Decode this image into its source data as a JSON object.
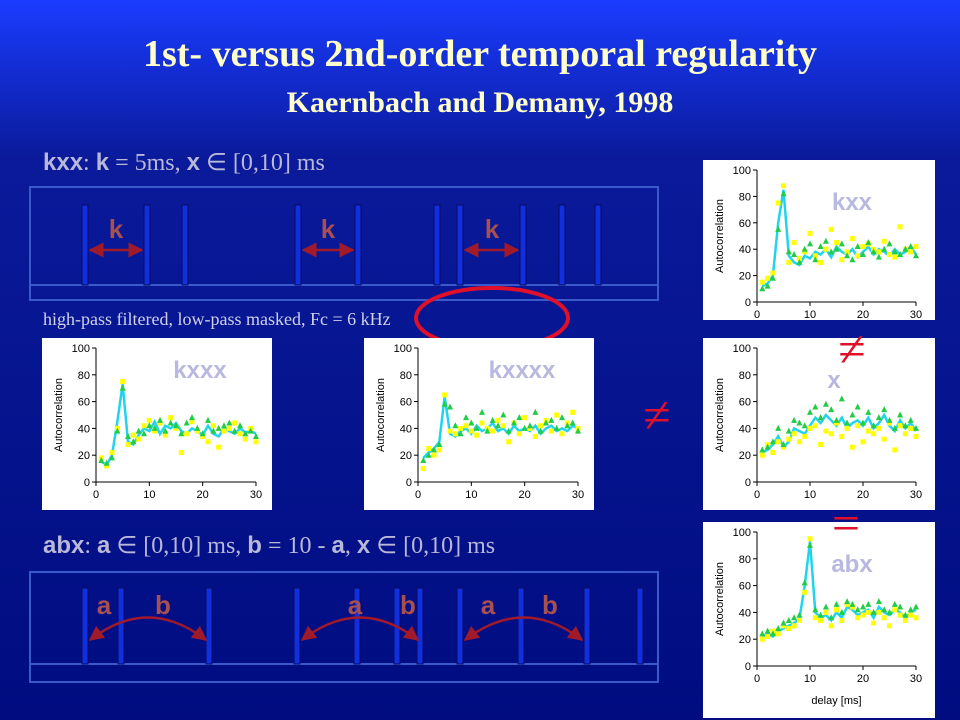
{
  "slide": {
    "title": "1st- versus 2nd-order temporal regularity",
    "subtitle": "Kaernbach and Demany, 1998",
    "kxx_line": [
      {
        "text": "kxx",
        "bold": true
      },
      {
        "text": ": "
      },
      {
        "text": "k",
        "bold": true
      },
      {
        "text": " = 5ms, "
      },
      {
        "text": "x",
        "bold": true
      },
      {
        "text": " ∈ [0,10] ms"
      }
    ],
    "abx_line": [
      {
        "text": "abx",
        "bold": true
      },
      {
        "text": ": "
      },
      {
        "text": "a",
        "bold": true
      },
      {
        "text": " ∈ [0,10] ms, "
      },
      {
        "text": "b",
        "bold": true
      },
      {
        "text": " = 10 - "
      },
      {
        "text": "a",
        "bold": true
      },
      {
        "text": ", "
      },
      {
        "text": "x",
        "bold": true
      },
      {
        "text": " ∈ [0,10] ms"
      }
    ],
    "filter_note": "high-pass filtered, low-pass masked, Fc = 6 kHz",
    "k_labels": [
      "k",
      "k",
      "k"
    ],
    "ab_labels": [
      "a",
      "b",
      "a",
      "b",
      "a",
      "b"
    ],
    "not_equal_1": "≠",
    "not_equal_2": "≠",
    "equal": "="
  },
  "chart_data": [
    {
      "type": "line",
      "label": "kxx",
      "y_label": "Autocorrelation",
      "xlim": [
        0,
        30
      ],
      "ylim": [
        0,
        100
      ],
      "xticks": [
        0,
        10,
        20,
        30
      ],
      "yticks": [
        0,
        20,
        40,
        60,
        80,
        100
      ],
      "x": [
        1,
        2,
        3,
        4,
        5,
        6,
        7,
        8,
        9,
        10,
        11,
        12,
        13,
        14,
        15,
        16,
        17,
        18,
        19,
        20,
        21,
        22,
        23,
        24,
        25,
        26,
        27,
        28,
        29,
        30
      ],
      "series": [
        {
          "style": "line",
          "color": "#22d3ee",
          "values": [
            12,
            14,
            20,
            60,
            85,
            35,
            30,
            28,
            35,
            33,
            38,
            36,
            40,
            34,
            42,
            38,
            36,
            40,
            34,
            38,
            42,
            36,
            40,
            38,
            35,
            40,
            36,
            38,
            42,
            36
          ]
        },
        {
          "style": "square",
          "color": "#ffff00",
          "values": [
            15,
            18,
            22,
            75,
            88,
            30,
            45,
            33,
            38,
            52,
            35,
            30,
            40,
            55,
            45,
            32,
            38,
            48,
            35,
            42,
            44,
            40,
            38,
            46,
            36,
            34,
            57,
            40,
            38,
            42
          ]
        },
        {
          "style": "triangle",
          "color": "#22cc44",
          "values": [
            10,
            12,
            18,
            55,
            82,
            38,
            36,
            30,
            40,
            44,
            32,
            42,
            46,
            38,
            40,
            44,
            35,
            32,
            42,
            36,
            45,
            38,
            34,
            40,
            44,
            38,
            36,
            40,
            42,
            35
          ]
        }
      ]
    },
    {
      "type": "line",
      "label": "kxxx",
      "y_label": "Autocorrelation",
      "xlim": [
        0,
        30
      ],
      "ylim": [
        0,
        100
      ],
      "xticks": [
        0,
        10,
        20,
        30
      ],
      "yticks": [
        0,
        20,
        40,
        60,
        80,
        100
      ],
      "x": [
        1,
        2,
        3,
        4,
        5,
        6,
        7,
        8,
        9,
        10,
        11,
        12,
        13,
        14,
        15,
        16,
        17,
        18,
        19,
        20,
        21,
        22,
        23,
        24,
        25,
        26,
        27,
        28,
        29,
        30
      ],
      "series": [
        {
          "style": "line",
          "color": "#22d3ee",
          "values": [
            15,
            13,
            20,
            45,
            73,
            30,
            28,
            35,
            40,
            38,
            45,
            36,
            42,
            40,
            44,
            38,
            36,
            40,
            38,
            35,
            42,
            36,
            34,
            40,
            38,
            36,
            40,
            37,
            38,
            36
          ]
        },
        {
          "style": "square",
          "color": "#ffff00",
          "values": [
            18,
            12,
            22,
            40,
            75,
            28,
            35,
            32,
            42,
            46,
            38,
            44,
            35,
            48,
            40,
            22,
            36,
            45,
            38,
            34,
            30,
            42,
            26,
            38,
            40,
            44,
            36,
            32,
            40,
            30
          ]
        },
        {
          "style": "triangle",
          "color": "#22cc44",
          "values": [
            16,
            14,
            18,
            38,
            70,
            34,
            30,
            38,
            36,
            42,
            40,
            46,
            38,
            44,
            42,
            36,
            44,
            48,
            40,
            36,
            46,
            38,
            40,
            42,
            44,
            38,
            42,
            36,
            38,
            34
          ]
        }
      ]
    },
    {
      "type": "line",
      "label": "kxxxx",
      "y_label": "Autocorrelation",
      "xlim": [
        0,
        30
      ],
      "ylim": [
        0,
        100
      ],
      "xticks": [
        0,
        10,
        20,
        30
      ],
      "yticks": [
        0,
        20,
        40,
        60,
        80,
        100
      ],
      "x": [
        1,
        2,
        3,
        4,
        5,
        6,
        7,
        8,
        9,
        10,
        11,
        12,
        13,
        14,
        15,
        16,
        17,
        18,
        19,
        20,
        21,
        22,
        23,
        24,
        25,
        26,
        27,
        28,
        29,
        30
      ],
      "series": [
        {
          "style": "line",
          "color": "#22d3ee",
          "values": [
            18,
            22,
            25,
            30,
            64,
            36,
            34,
            38,
            40,
            36,
            42,
            38,
            40,
            44,
            38,
            40,
            36,
            42,
            38,
            40,
            38,
            42,
            36,
            40,
            42,
            38,
            40,
            38,
            42,
            40
          ]
        },
        {
          "style": "square",
          "color": "#ffff00",
          "values": [
            10,
            25,
            20,
            24,
            65,
            38,
            36,
            40,
            42,
            38,
            35,
            44,
            40,
            38,
            46,
            42,
            30,
            44,
            36,
            48,
            40,
            34,
            42,
            46,
            38,
            50,
            36,
            44,
            52,
            40
          ]
        },
        {
          "style": "triangle",
          "color": "#22cc44",
          "values": [
            16,
            20,
            24,
            28,
            58,
            56,
            42,
            36,
            48,
            44,
            40,
            52,
            38,
            46,
            42,
            50,
            38,
            44,
            48,
            40,
            42,
            52,
            38,
            44,
            46,
            40,
            48,
            42,
            44,
            38
          ]
        }
      ]
    },
    {
      "type": "line",
      "label": "x",
      "y_label": "Autocorrelation",
      "xlim": [
        0,
        30
      ],
      "ylim": [
        0,
        100
      ],
      "xticks": [
        0,
        10,
        20,
        30
      ],
      "yticks": [
        0,
        20,
        40,
        60,
        80,
        100
      ],
      "x": [
        1,
        2,
        3,
        4,
        5,
        6,
        7,
        8,
        9,
        10,
        11,
        12,
        13,
        14,
        15,
        16,
        17,
        18,
        19,
        20,
        21,
        22,
        23,
        24,
        25,
        26,
        27,
        28,
        29,
        30
      ],
      "series": [
        {
          "style": "line",
          "color": "#22d3ee",
          "values": [
            22,
            24,
            28,
            34,
            26,
            30,
            40,
            38,
            36,
            42,
            48,
            44,
            50,
            46,
            42,
            48,
            40,
            44,
            46,
            42,
            48,
            40,
            44,
            50,
            42,
            38,
            46,
            40,
            44,
            38
          ]
        },
        {
          "style": "square",
          "color": "#ffff00",
          "values": [
            20,
            28,
            22,
            30,
            26,
            32,
            36,
            30,
            34,
            40,
            42,
            28,
            38,
            36,
            44,
            34,
            40,
            26,
            42,
            30,
            38,
            36,
            40,
            32,
            44,
            24,
            42,
            36,
            40,
            34
          ]
        },
        {
          "style": "triangle",
          "color": "#22cc44",
          "values": [
            24,
            26,
            30,
            40,
            28,
            38,
            46,
            44,
            42,
            52,
            56,
            48,
            58,
            54,
            46,
            62,
            44,
            50,
            56,
            44,
            52,
            42,
            48,
            54,
            46,
            40,
            50,
            42,
            46,
            40
          ]
        }
      ]
    },
    {
      "type": "line",
      "label": "abx",
      "y_label": "Autocorrelation",
      "x_label": "delay [ms]",
      "xlim": [
        0,
        30
      ],
      "ylim": [
        0,
        100
      ],
      "xticks": [
        0,
        10,
        20,
        30
      ],
      "yticks": [
        0,
        20,
        40,
        60,
        80,
        100
      ],
      "x": [
        1,
        2,
        3,
        4,
        5,
        6,
        7,
        8,
        9,
        10,
        11,
        12,
        13,
        14,
        15,
        16,
        17,
        18,
        19,
        20,
        21,
        22,
        23,
        24,
        25,
        26,
        27,
        28,
        29,
        30
      ],
      "series": [
        {
          "style": "line",
          "color": "#22d3ee",
          "values": [
            22,
            24,
            22,
            26,
            28,
            30,
            32,
            35,
            60,
            93,
            40,
            36,
            38,
            34,
            40,
            36,
            44,
            42,
            38,
            40,
            42,
            36,
            44,
            40,
            38,
            42,
            40,
            36,
            40,
            42
          ]
        },
        {
          "style": "square",
          "color": "#ffff00",
          "values": [
            20,
            22,
            26,
            24,
            30,
            28,
            30,
            34,
            55,
            95,
            36,
            34,
            40,
            30,
            42,
            34,
            46,
            44,
            36,
            38,
            40,
            32,
            40,
            36,
            30,
            42,
            38,
            34,
            38,
            36
          ]
        },
        {
          "style": "triangle",
          "color": "#22cc44",
          "values": [
            24,
            26,
            24,
            28,
            32,
            34,
            36,
            38,
            62,
            90,
            42,
            38,
            44,
            36,
            46,
            40,
            48,
            46,
            42,
            44,
            46,
            40,
            48,
            42,
            40,
            46,
            44,
            38,
            42,
            44
          ]
        }
      ]
    }
  ]
}
